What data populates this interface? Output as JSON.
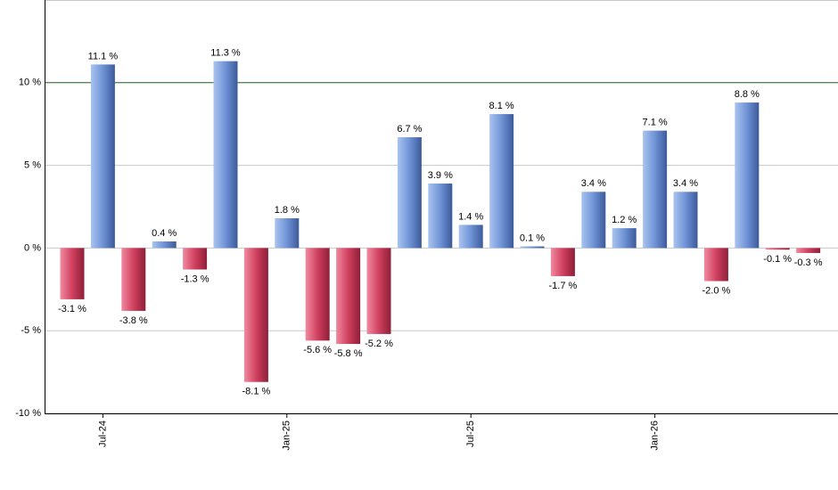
{
  "chart_data": {
    "type": "bar",
    "categories": [
      null,
      "Jul-24",
      null,
      null,
      null,
      null,
      null,
      "Jan-25",
      null,
      null,
      null,
      null,
      null,
      "Jul-25",
      null,
      null,
      null,
      null,
      null,
      "Jan-26",
      null,
      null,
      null,
      null,
      null
    ],
    "values": [
      -3.1,
      11.1,
      -3.8,
      0.4,
      -1.3,
      11.3,
      -8.1,
      1.8,
      -5.6,
      -5.8,
      -5.2,
      6.7,
      3.9,
      1.4,
      8.1,
      0.1,
      -1.7,
      3.4,
      1.2,
      7.1,
      3.4,
      -2.0,
      8.8,
      -0.1,
      -0.3
    ],
    "value_labels": [
      "-3.1 %",
      "11.1 %",
      "-3.8 %",
      "0.4 %",
      "-1.3 %",
      "11.3 %",
      "-8.1 %",
      "1.8 %",
      "-5.6 %",
      "-5.8 %",
      "-5.2 %",
      "6.7 %",
      "3.9 %",
      "1.4 %",
      "8.1 %",
      "0.1 %",
      "-1.7 %",
      "3.4 %",
      "1.2 %",
      "7.1 %",
      "3.4 %",
      "-2.0 %",
      "8.8 %",
      "-0.1 %",
      "-0.3 %"
    ],
    "positive_color": "#6f93d6",
    "negative_color": "#d0405f",
    "ylim": [
      -10,
      15
    ],
    "yticks": [
      {
        "value": -10,
        "label": "-10 %"
      },
      {
        "value": -5,
        "label": "-5 %"
      },
      {
        "value": 0,
        "label": "0 %"
      },
      {
        "value": 5,
        "label": "5 %"
      },
      {
        "value": 10,
        "label": "10 %"
      }
    ],
    "grid": true,
    "reference_line": {
      "value": 10,
      "color": "#2e6b2e"
    }
  }
}
